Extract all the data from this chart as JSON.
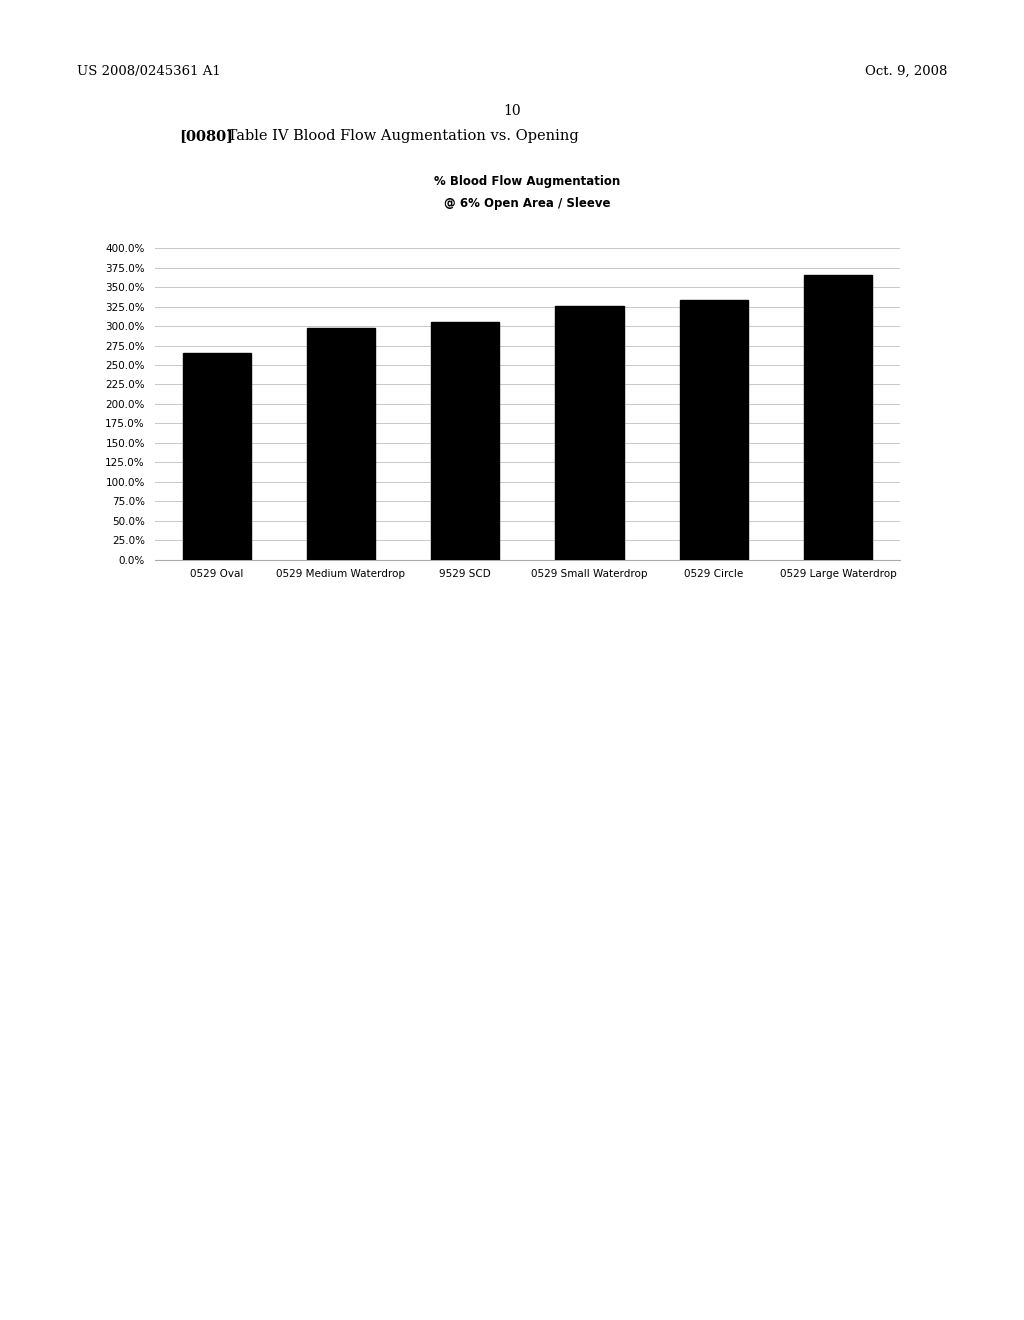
{
  "categories": [
    "0529 Oval",
    "0529 Medium Waterdrop",
    "9529 SCD",
    "0529 Small Waterdrop",
    "0529 Circle",
    "0529 Large Waterdrop"
  ],
  "values": [
    265.0,
    298.0,
    305.0,
    326.0,
    333.0,
    365.0
  ],
  "bar_color": "#000000",
  "chart_title_line1": "% Blood Flow Augmentation",
  "chart_title_line2": "@ 6% Open Area / Sleeve",
  "ylim_min": 0,
  "ylim_max": 400,
  "ytick_step": 25,
  "background_color": "#ffffff",
  "header_left": "US 2008/0245361 A1",
  "header_right": "Oct. 9, 2008",
  "page_number": "10",
  "caption_bold": "[0080]",
  "caption_rest": " Table IV Blood Flow Augmentation vs. Opening",
  "grid_color": "#c8c8c8",
  "chart_title_fontsize": 8.5,
  "axis_tick_fontsize": 7.5,
  "xlabel_fontsize": 7.5,
  "header_fontsize": 9.5,
  "caption_fontsize": 10.5,
  "page_num_fontsize": 10
}
